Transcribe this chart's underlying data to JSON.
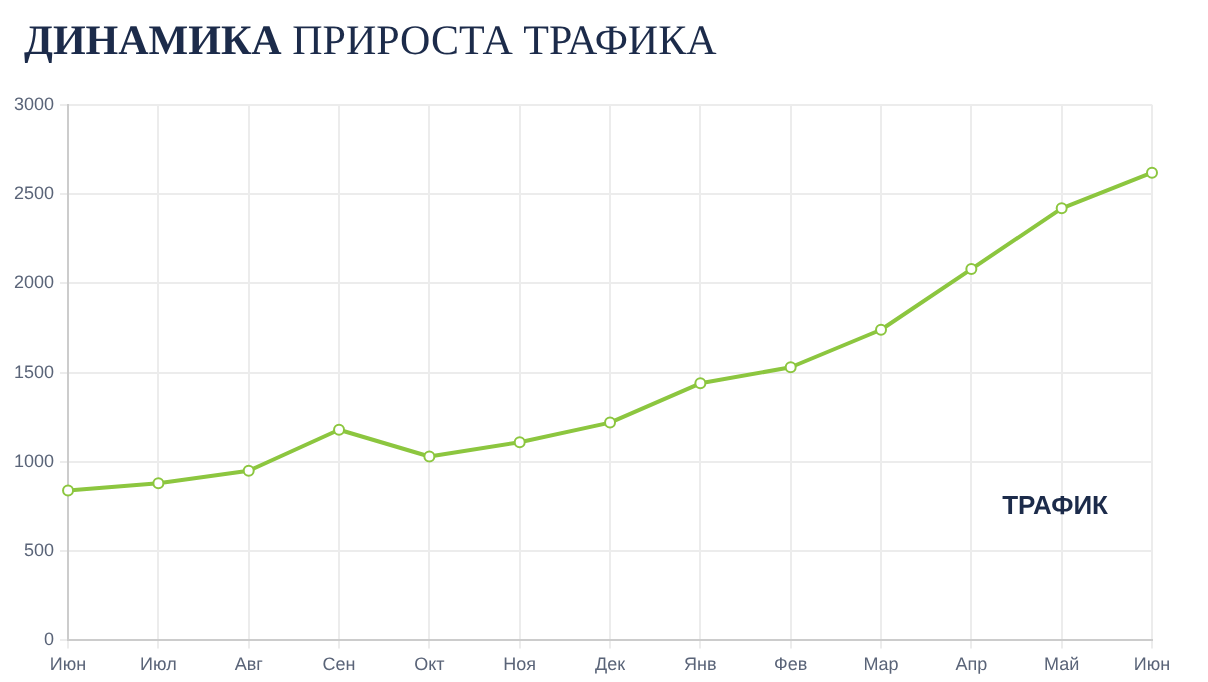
{
  "chart_data": {
    "type": "line",
    "title": "ДИНАМИКА ПРИРОСТА ТРАФИКА",
    "categories": [
      "Июн",
      "Июл",
      "Авг",
      "Сен",
      "Окт",
      "Ноя",
      "Дек",
      "Янв",
      "Фев",
      "Мар",
      "Апр",
      "Май",
      "Июн"
    ],
    "series": [
      {
        "name": "ТРАФИК",
        "color": "#8cc63f",
        "values": [
          840,
          880,
          950,
          1180,
          1030,
          1110,
          1220,
          1440,
          1530,
          1740,
          2080,
          2420,
          2620
        ]
      }
    ],
    "ylim": [
      0,
      3000
    ],
    "yticks": [
      0,
      500,
      1000,
      1500,
      2000,
      2500,
      3000
    ],
    "grid": true,
    "legend": "bottom right",
    "marker": "circle"
  }
}
